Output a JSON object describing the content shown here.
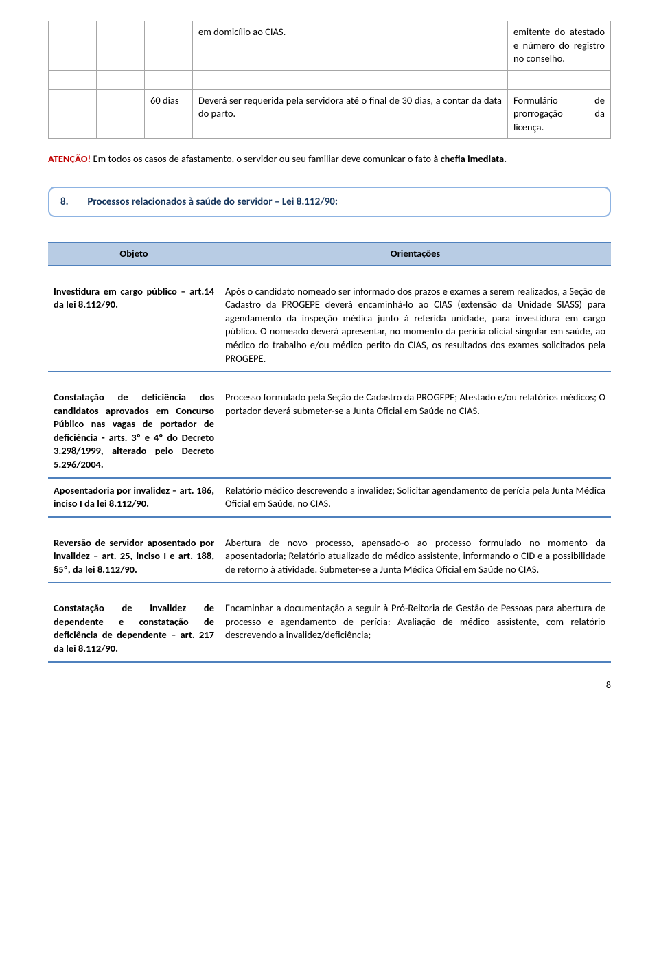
{
  "top_table": {
    "r1c4": "em domicílio ao CIAS.",
    "r1c5": "emitente do atestado e número do registro no conselho.",
    "r2c3": "60 dias",
    "r2c4": "Deverá ser requerida pela servidora até o final de 30 dias, a contar da data do parto.",
    "r2c5": "Formulário de prorrogação da licença."
  },
  "attention": {
    "label": "ATENÇÃO!",
    "text": " Em todos os casos de afastamento, o servidor ou seu familiar deve comunicar o fato à ",
    "bold": "chefia imediata."
  },
  "section": {
    "num": "8.",
    "title": "Processos relacionados à saúde do servidor – Lei 8.112/90:"
  },
  "headers": {
    "objeto": "Objeto",
    "orient": "Orientações"
  },
  "rows": {
    "r1l": "Investidura em cargo público – art.14 da lei 8.112/90.",
    "r1r": "Após o candidato nomeado ser informado dos prazos e exames a serem realizados, a Seção de Cadastro da PROGEPE deverá encaminhá-lo ao CIAS (extensão da Unidade SIASS) para agendamento da inspeção médica junto à referida unidade, para investidura em cargo público. O nomeado deverá apresentar, no momento da perícia oficial singular em saúde, ao médico do trabalho e/ou médico perito do CIAS, os resultados dos exames solicitados pela PROGEPE.",
    "r2l": "Constatação de deficiência dos candidatos aprovados em Concurso Público nas vagas de portador de deficiência - arts. 3º e 4º do Decreto 3.298/1999, alterado pelo Decreto 5.296/2004.",
    "r2r": "Processo formulado pela Seção de Cadastro da PROGEPE; Atestado e/ou relatórios médicos; O portador deverá submeter-se a Junta Oficial em Saúde no CIAS.",
    "r3l": "Aposentadoria por invalidez – art. 186, inciso I da lei 8.112/90.",
    "r3r": "Relatório médico descrevendo a invalidez; Solicitar agendamento de perícia pela Junta Médica Oficial em Saúde, no CIAS.",
    "r4l": "Reversão de servidor aposentado por invalidez – art. 25, inciso I e art. 188, §5º, da lei 8.112/90.",
    "r4r": "Abertura de novo processo, apensado-o ao processo formulado no momento da aposentadoria; Relatório atualizado do médico assistente, informando o CID e a possibilidade de retorno à atividade. Submeter-se a Junta Médica Oficial em Saúde no CIAS.",
    "r5l": "Constatação de invalidez de dependente e constatação de deficiência de dependente – art. 217 da lei 8.112/90.",
    "r5r": "Encaminhar a documentação a seguir à Pró-Reitoria de Gestão de Pessoas para abertura de processo e agendamento de perícia: Avaliação de médico assistente, com relatório descrevendo a invalidez/deficiência;"
  },
  "page": "8"
}
